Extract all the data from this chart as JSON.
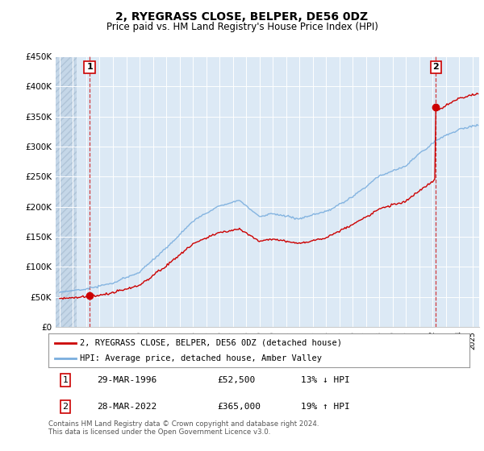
{
  "title": "2, RYEGRASS CLOSE, BELPER, DE56 0DZ",
  "subtitle": "Price paid vs. HM Land Registry's House Price Index (HPI)",
  "sale1_date": "29-MAR-1996",
  "sale1_price": 52500,
  "sale1_label": "1",
  "sale1_year": 1996.25,
  "sale2_date": "28-MAR-2022",
  "sale2_price": 365000,
  "sale2_label": "2",
  "sale2_year": 2022.25,
  "legend_line1": "2, RYEGRASS CLOSE, BELPER, DE56 0DZ (detached house)",
  "legend_line2": "HPI: Average price, detached house, Amber Valley",
  "footer": "Contains HM Land Registry data © Crown copyright and database right 2024.\nThis data is licensed under the Open Government Licence v3.0.",
  "ylim": [
    0,
    450000
  ],
  "xlim_start": 1993.7,
  "xlim_end": 2025.5,
  "hpi_color": "#7aaede",
  "price_color": "#cc0000",
  "background_plot": "#dce9f5",
  "background_hatch_color": "#c5d7e8",
  "grid_color": "#ffffff",
  "hatch_end": 1995.3
}
